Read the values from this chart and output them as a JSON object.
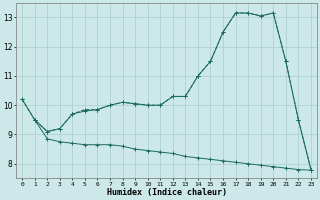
{
  "xlabel": "Humidex (Indice chaleur)",
  "bg_color": "#cce8e8",
  "grid_color": "#aacccc",
  "line_color": "#1a6b5a",
  "xlim": [
    -0.5,
    23.5
  ],
  "ylim": [
    7.5,
    13.5
  ],
  "yticks": [
    8,
    9,
    10,
    11,
    12,
    13
  ],
  "xticks": [
    0,
    1,
    2,
    3,
    4,
    5,
    6,
    7,
    8,
    9,
    10,
    11,
    12,
    13,
    14,
    15,
    16,
    17,
    18,
    19,
    20,
    21,
    22,
    23
  ],
  "line1_x": [
    0,
    1,
    2,
    3,
    4,
    5,
    6,
    7,
    8,
    9,
    10,
    11,
    12,
    13,
    14,
    15,
    16,
    17,
    18,
    19,
    20,
    21,
    22,
    23
  ],
  "line1_y": [
    10.2,
    9.5,
    9.1,
    9.2,
    9.7,
    9.8,
    9.85,
    10.0,
    10.1,
    10.05,
    10.0,
    10.0,
    10.3,
    10.3,
    11.0,
    11.5,
    12.5,
    13.15,
    13.15,
    13.05,
    13.15,
    11.5,
    9.5,
    7.8
  ],
  "line2_x": [
    0,
    1,
    2,
    3,
    4,
    5,
    6,
    7,
    8,
    9,
    10,
    11,
    12,
    13,
    14,
    15,
    16,
    17,
    18,
    19,
    20,
    21,
    22,
    23
  ],
  "line2_y": [
    10.2,
    9.5,
    9.1,
    9.2,
    9.7,
    9.85,
    9.85,
    10.0,
    10.1,
    10.05,
    10.0,
    10.0,
    10.3,
    10.3,
    11.0,
    11.5,
    12.5,
    13.15,
    13.15,
    13.05,
    13.15,
    11.5,
    9.5,
    7.8
  ],
  "line3_x": [
    1,
    2,
    3,
    4,
    5,
    6,
    7,
    8,
    9,
    10,
    11,
    12,
    13,
    14,
    15,
    16,
    17,
    18,
    19,
    20,
    21,
    22,
    23
  ],
  "line3_y": [
    9.5,
    8.85,
    8.75,
    8.7,
    8.65,
    8.65,
    8.65,
    8.6,
    8.5,
    8.45,
    8.4,
    8.35,
    8.25,
    8.2,
    8.15,
    8.1,
    8.05,
    8.0,
    7.95,
    7.9,
    7.85,
    7.8,
    7.78
  ]
}
